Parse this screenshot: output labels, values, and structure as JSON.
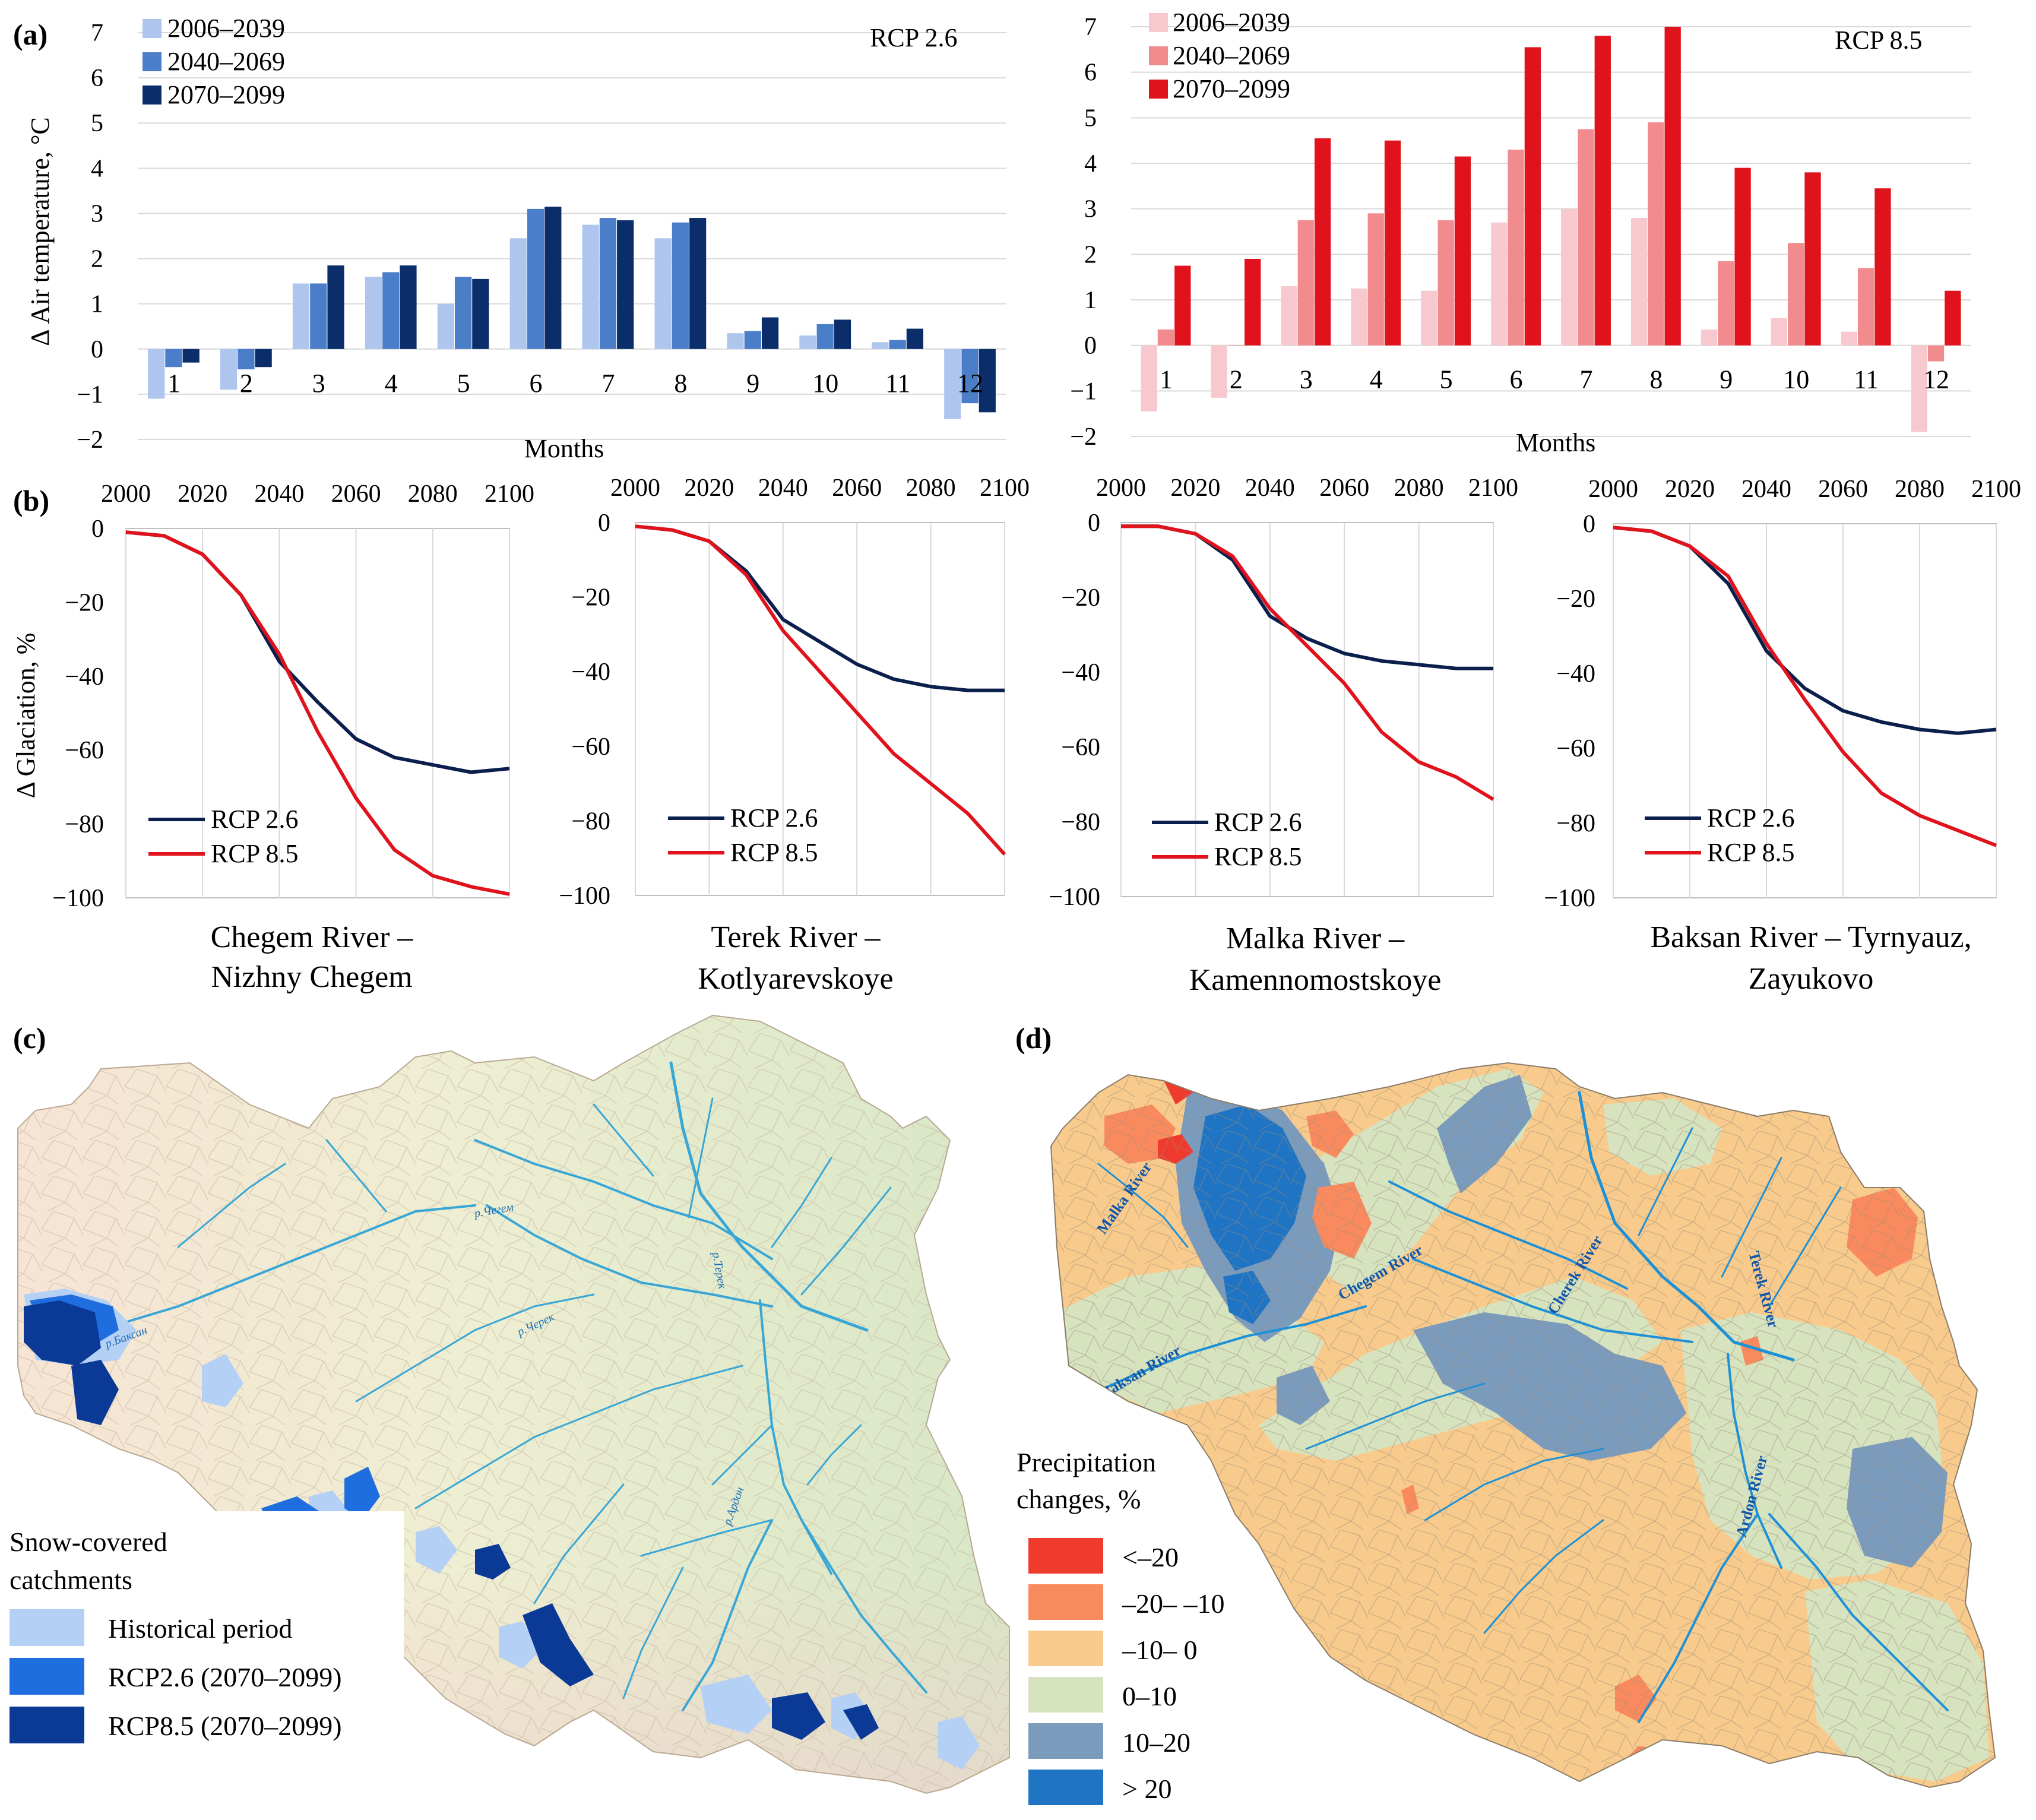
{
  "panels": {
    "a": "(a)",
    "b": "(b)",
    "c": "(c)",
    "d": "(d)"
  },
  "colors": {
    "rcp26_periods": [
      "#aec6ee",
      "#4a7ec9",
      "#0b2e6b"
    ],
    "rcp85_periods": [
      "#f7c9cf",
      "#f18b8e",
      "#e0131d"
    ],
    "line_rcp26": "#0b1f4d",
    "line_rcp85": "#e0131d",
    "snow_hist": "#b5d0f5",
    "snow_rcp26": "#1f6ee0",
    "snow_rcp85": "#0a3a96",
    "precip_classes": [
      "#ef3a2e",
      "#f98a5e",
      "#f8cb8c",
      "#d6e3be",
      "#7b9bbd",
      "#1f74c3"
    ]
  },
  "chart_data": [
    {
      "id": "temp_rcp26",
      "type": "bar",
      "title": "RCP 2.6",
      "xlabel": "Months",
      "ylabel": "Δ Air temperature, °C",
      "ylim": [
        -2,
        7
      ],
      "yticks": [
        "−2",
        "−1",
        "0",
        "1",
        "2",
        "3",
        "4",
        "5",
        "6",
        "7"
      ],
      "categories": [
        "1",
        "2",
        "3",
        "4",
        "5",
        "6",
        "7",
        "8",
        "9",
        "10",
        "11",
        "12"
      ],
      "legend": "top-left",
      "series": [
        {
          "name": "2006–2039",
          "values": [
            -1.1,
            -0.9,
            1.45,
            1.6,
            1.0,
            2.45,
            2.75,
            2.45,
            0.35,
            0.3,
            0.15,
            -1.55
          ]
        },
        {
          "name": "2040–2069",
          "values": [
            -0.4,
            -0.45,
            1.45,
            1.7,
            1.6,
            3.1,
            2.9,
            2.8,
            0.4,
            0.55,
            0.2,
            -1.2
          ]
        },
        {
          "name": "2070–2099",
          "values": [
            -0.3,
            -0.4,
            1.85,
            1.85,
            1.55,
            3.15,
            2.85,
            2.9,
            0.7,
            0.65,
            0.45,
            -1.4
          ]
        }
      ]
    },
    {
      "id": "temp_rcp85",
      "type": "bar",
      "title": "RCP 8.5",
      "xlabel": "Months",
      "ylabel": "",
      "ylim": [
        -2,
        7
      ],
      "yticks": [
        "−2",
        "−1",
        "0",
        "1",
        "2",
        "3",
        "4",
        "5",
        "6",
        "7"
      ],
      "categories": [
        "1",
        "2",
        "3",
        "4",
        "5",
        "6",
        "7",
        "8",
        "9",
        "10",
        "11",
        "12"
      ],
      "legend": "top-left",
      "series": [
        {
          "name": "2006–2039",
          "values": [
            -1.45,
            -1.15,
            1.3,
            1.25,
            1.2,
            2.7,
            3.0,
            2.8,
            0.35,
            0.6,
            0.3,
            -1.9
          ]
        },
        {
          "name": "2040–2069",
          "values": [
            0.35,
            0.0,
            2.75,
            2.9,
            2.75,
            4.3,
            4.75,
            4.9,
            1.85,
            2.25,
            1.7,
            -0.35
          ]
        },
        {
          "name": "2070–2099",
          "values": [
            1.75,
            1.9,
            4.55,
            4.5,
            4.15,
            6.55,
            6.8,
            7.0,
            3.9,
            3.8,
            3.45,
            1.2
          ]
        }
      ]
    },
    {
      "id": "glac_chegem",
      "type": "line",
      "title": "Chegem River –",
      "subtitle": "Nizhny Chegem",
      "ylabel": "Δ Glaciation, %",
      "xlim": [
        2000,
        2100
      ],
      "ylim": [
        -100,
        0
      ],
      "xticks": [
        "2000",
        "2020",
        "2040",
        "2060",
        "2080",
        "2100"
      ],
      "yticks": [
        "0",
        "−20",
        "−40",
        "−60",
        "−80",
        "−100"
      ],
      "legend": "bottom-left",
      "x": [
        2000,
        2010,
        2020,
        2030,
        2040,
        2050,
        2060,
        2070,
        2080,
        2090,
        2100
      ],
      "series": [
        {
          "name": "RCP 2.6",
          "values": [
            -1,
            -2,
            -7,
            -18,
            -36,
            -47,
            -57,
            -62,
            -64,
            -66,
            -65
          ]
        },
        {
          "name": "RCP 8.5",
          "values": [
            -1,
            -2,
            -7,
            -18,
            -34,
            -55,
            -73,
            -87,
            -94,
            -97,
            -99
          ]
        }
      ]
    },
    {
      "id": "glac_terek",
      "type": "line",
      "title": "Terek River –",
      "subtitle": "Kotlyarevskoye",
      "ylabel": "",
      "xlim": [
        2000,
        2100
      ],
      "ylim": [
        -100,
        0
      ],
      "xticks": [
        "2000",
        "2020",
        "2040",
        "2060",
        "2080",
        "2100"
      ],
      "yticks": [
        "0",
        "−20",
        "−40",
        "−60",
        "−80",
        "−100"
      ],
      "legend": "bottom-left",
      "x": [
        2000,
        2010,
        2020,
        2030,
        2040,
        2050,
        2060,
        2070,
        2080,
        2090,
        2100
      ],
      "series": [
        {
          "name": "RCP 2.6",
          "values": [
            -1,
            -2,
            -5,
            -13,
            -26,
            -32,
            -38,
            -42,
            -44,
            -45,
            -45
          ]
        },
        {
          "name": "RCP 8.5",
          "values": [
            -1,
            -2,
            -5,
            -14,
            -29,
            -40,
            -51,
            -62,
            -70,
            -78,
            -89
          ]
        }
      ]
    },
    {
      "id": "glac_malka",
      "type": "line",
      "title": "Malka River –",
      "subtitle": "Kamennomostskoye",
      "ylabel": "",
      "xlim": [
        2000,
        2100
      ],
      "ylim": [
        -100,
        0
      ],
      "xticks": [
        "2000",
        "2020",
        "2040",
        "2060",
        "2080",
        "2100"
      ],
      "yticks": [
        "0",
        "−20",
        "−40",
        "−60",
        "−80",
        "−100"
      ],
      "legend": "bottom-left",
      "x": [
        2000,
        2010,
        2020,
        2030,
        2040,
        2050,
        2060,
        2070,
        2080,
        2090,
        2100
      ],
      "series": [
        {
          "name": "RCP 2.6",
          "values": [
            -1,
            -1,
            -3,
            -10,
            -25,
            -31,
            -35,
            -37,
            -38,
            -39,
            -39
          ]
        },
        {
          "name": "RCP 8.5",
          "values": [
            -1,
            -1,
            -3,
            -9,
            -23,
            -33,
            -43,
            -56,
            -64,
            -68,
            -74
          ]
        }
      ]
    },
    {
      "id": "glac_baksan",
      "type": "line",
      "title": "Baksan River – Tyrnyauz,",
      "subtitle": "Zayukovo",
      "ylabel": "",
      "xlim": [
        2000,
        2100
      ],
      "ylim": [
        -100,
        0
      ],
      "xticks": [
        "2000",
        "2020",
        "2040",
        "2060",
        "2080",
        "2100"
      ],
      "yticks": [
        "0",
        "−20",
        "−40",
        "−60",
        "−80",
        "−100"
      ],
      "legend": "bottom-left",
      "x": [
        2000,
        2010,
        2020,
        2030,
        2040,
        2050,
        2060,
        2070,
        2080,
        2090,
        2100
      ],
      "series": [
        {
          "name": "RCP 2.6",
          "values": [
            -1,
            -2,
            -6,
            -16,
            -34,
            -44,
            -50,
            -53,
            -55,
            -56,
            -55
          ]
        },
        {
          "name": "RCP 8.5",
          "values": [
            -1,
            -2,
            -6,
            -14,
            -32,
            -47,
            -61,
            -72,
            -78,
            -82,
            -86
          ]
        }
      ]
    }
  ],
  "map_c": {
    "river_labels": [
      "р.Чегем",
      "р.Черек",
      "р.Терек",
      "р.Баксан",
      "р.Ардон"
    ],
    "legend_title_1": "Snow-covered",
    "legend_title_2": "catchments",
    "legend_items": [
      "Historical period",
      "RCP2.6 (2070–2099)",
      "RCP8.5 (2070–2099)"
    ]
  },
  "map_d": {
    "river_labels": [
      "Malka River",
      "Chegem River",
      "Baksan River",
      "Cherek River",
      "Terek River",
      "Ardon River"
    ],
    "legend_title_1": "Precipitation",
    "legend_title_2": "changes, %",
    "legend_items": [
      "<–20",
      "–20– –10",
      "–10– 0",
      "0–10",
      "10–20",
      "> 20"
    ]
  }
}
